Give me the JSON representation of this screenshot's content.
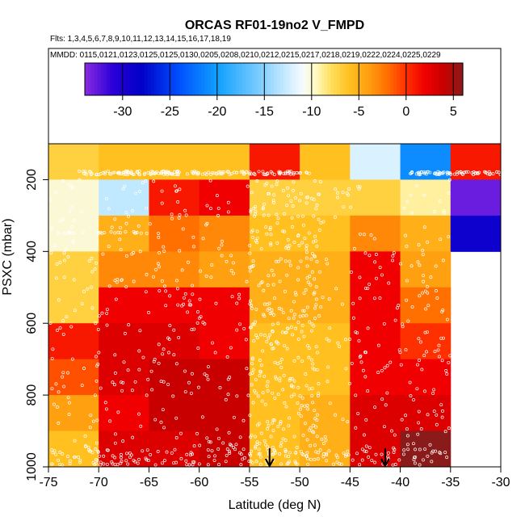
{
  "chart_data": {
    "type": "heatmap",
    "title": "ORCAS RF01-19no2 V_FMPD",
    "subtitle_flights": "Flts: 1,3,4,5,6,7,8,9,10,11,12,13,14,15,16,17,18,19",
    "subtitle_dates": "MMDD: 0115,0121,0123,0125,0125,0130,0205,0208,0210,0212,0215,0217,0218,0219,0222,0224,0225,0229",
    "xlabel": "Latitude (deg N)",
    "ylabel": "PSXC (mbar)",
    "xlim": [
      -75,
      -30
    ],
    "ylim": [
      1000,
      100
    ],
    "xticks": [
      -75,
      -70,
      -65,
      -60,
      -55,
      -50,
      -45,
      -40,
      -35,
      -30
    ],
    "yticks": [
      200,
      400,
      600,
      800,
      1000
    ],
    "colorbar": {
      "range": [
        -34,
        6
      ],
      "ticks": [
        -30,
        -25,
        -20,
        -15,
        -10,
        -5,
        0,
        5
      ],
      "stops": [
        {
          "v": -34,
          "c": "#8a2be2"
        },
        {
          "v": -31,
          "c": "#2a00d8"
        },
        {
          "v": -28,
          "c": "#0000c8"
        },
        {
          "v": -24,
          "c": "#0050ff"
        },
        {
          "v": -20,
          "c": "#10a0ff"
        },
        {
          "v": -16,
          "c": "#70c8ff"
        },
        {
          "v": -13,
          "c": "#c0e8ff"
        },
        {
          "v": -11,
          "c": "#f4fbff"
        },
        {
          "v": -9.5,
          "c": "#fff8c0"
        },
        {
          "v": -8,
          "c": "#ffe060"
        },
        {
          "v": -6,
          "c": "#ffc020"
        },
        {
          "v": -4,
          "c": "#ffa010"
        },
        {
          "v": -2,
          "c": "#ff7000"
        },
        {
          "v": 0,
          "c": "#ff3000"
        },
        {
          "v": 2,
          "c": "#f00000"
        },
        {
          "v": 4,
          "c": "#c80000"
        },
        {
          "v": 6,
          "c": "#8b1a1a"
        }
      ]
    },
    "lat_bins": [
      -75,
      -70,
      -65,
      -60,
      -55,
      -50,
      -45,
      -40,
      -35
    ],
    "p_bins": [
      100,
      200,
      300,
      400,
      500,
      600,
      700,
      800,
      900,
      1000
    ],
    "values": [
      [
        -7,
        -6,
        -6,
        -6,
        1,
        -6,
        -12,
        -21,
        1
      ],
      [
        -10,
        -13,
        1,
        2,
        -7,
        -7,
        -7,
        -9,
        -33
      ],
      [
        -10,
        -5,
        -2,
        -3,
        -6,
        -6,
        -3,
        -5,
        -29
      ],
      [
        -7,
        -3,
        -3,
        -4,
        -5,
        -5,
        2,
        -4,
        null
      ],
      [
        -7,
        2,
        2,
        2,
        -5,
        -5,
        2,
        -2,
        null
      ],
      [
        1,
        3,
        3,
        2,
        -6,
        -6,
        2,
        0,
        null
      ],
      [
        -1,
        3,
        4,
        4,
        -6,
        -6,
        2,
        2,
        null
      ],
      [
        -4,
        2,
        4,
        4,
        -6,
        -5,
        3,
        3,
        null
      ],
      [
        -6,
        3,
        3,
        4,
        -6,
        -5,
        3,
        6,
        null
      ]
    ],
    "arrows_lat": [
      -53,
      -41.5
    ]
  }
}
